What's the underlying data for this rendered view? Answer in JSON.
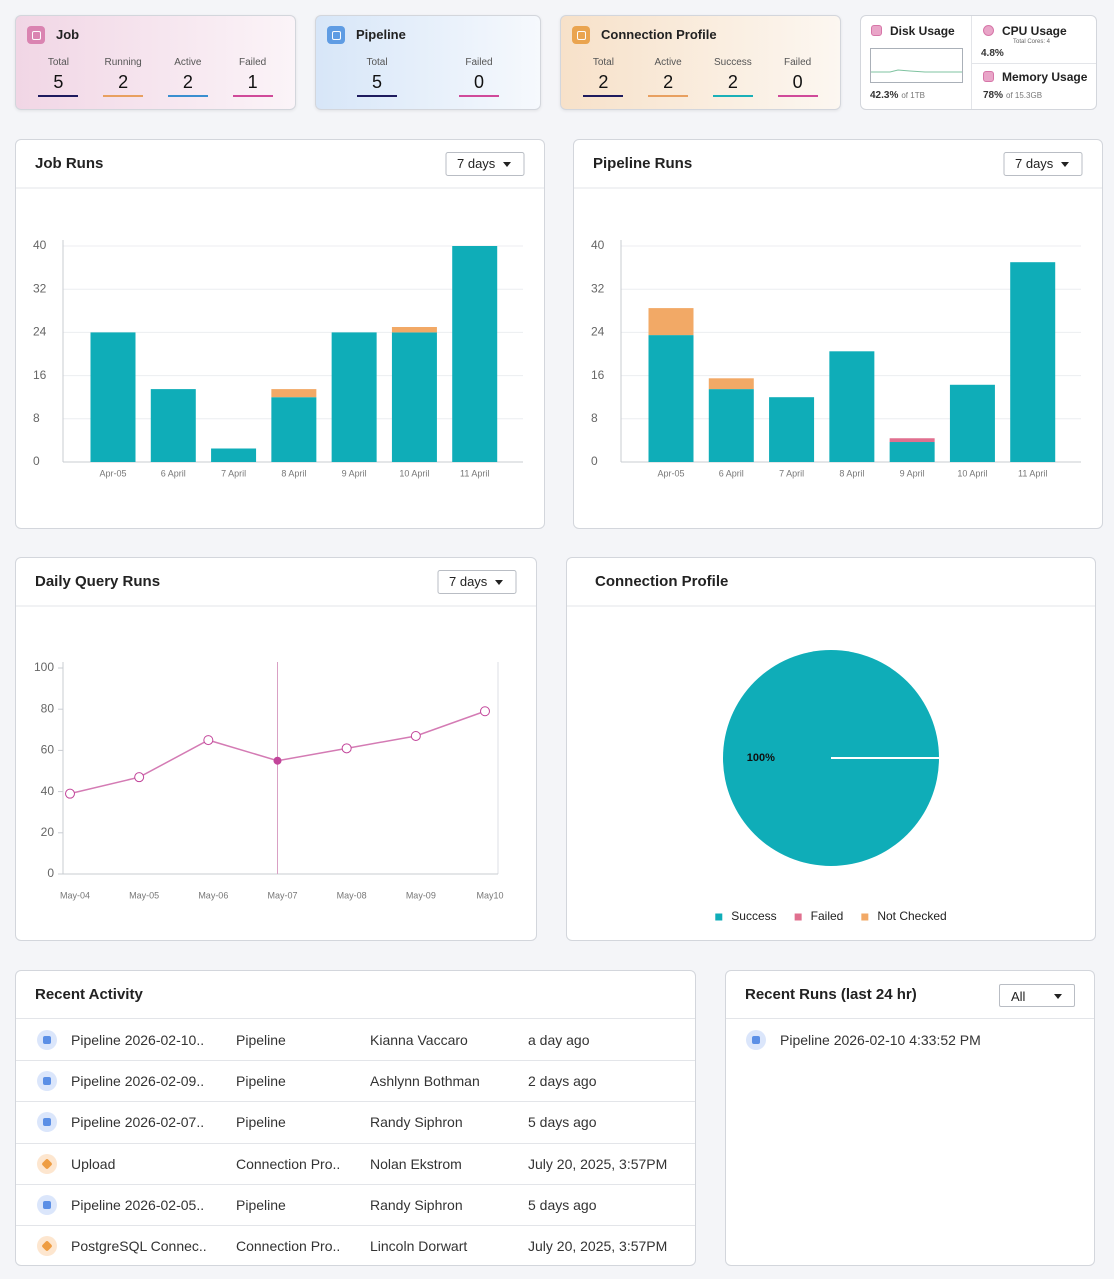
{
  "summary_cards": [
    {
      "title": "Job",
      "accent": "#d676a8",
      "stats": [
        {
          "label": "Total",
          "value": 5,
          "color": "#1e1b5e"
        },
        {
          "label": "Running",
          "value": 2,
          "color": "#e8a060"
        },
        {
          "label": "Active",
          "value": 2,
          "color": "#3a8fd0"
        },
        {
          "label": "Failed",
          "value": 1,
          "color": "#d04a9a"
        }
      ]
    },
    {
      "title": "Pipeline",
      "accent": "#4a8fe0",
      "stats": [
        {
          "label": "Total",
          "value": 5,
          "color": "#1e1b5e"
        },
        {
          "label": "Failed",
          "value": 0,
          "color": "#d04a9a"
        }
      ]
    },
    {
      "title": "Connection Profile",
      "accent": "#e89a3a",
      "stats": [
        {
          "label": "Total",
          "value": 2,
          "color": "#1e1b5e"
        },
        {
          "label": "Active",
          "value": 2,
          "color": "#e8a060"
        },
        {
          "label": "Success",
          "value": 2,
          "color": "#1ab0b8"
        },
        {
          "label": "Failed",
          "value": 0,
          "color": "#d04a9a"
        }
      ]
    }
  ],
  "system_usage": {
    "disk": {
      "title": "Disk Usage",
      "value": "42.3%",
      "detail": "of 1TB"
    },
    "cpu": {
      "title": "CPU Usage",
      "detail": "Total Cores: 4",
      "value": "4.8%"
    },
    "memory": {
      "title": "Memory Usage",
      "value": "78%",
      "detail": "of 15.3GB"
    }
  },
  "chart_data": [
    {
      "type": "bar",
      "stacked": true,
      "title": "Job Runs",
      "period": "7 days",
      "categories": [
        "Apr-05",
        "6 April",
        "7 April",
        "8 April",
        "9 April",
        "10 April",
        "11 April"
      ],
      "series": [
        {
          "color": "#0fadb8",
          "values": [
            24,
            13.5,
            2.5,
            12,
            24,
            24,
            40
          ]
        },
        {
          "color": "#f2a966",
          "values": [
            0,
            0,
            0,
            1.5,
            0,
            1,
            0
          ]
        }
      ],
      "ylim": [
        0,
        40
      ],
      "yticks": [
        0,
        8,
        16,
        24,
        32,
        40
      ],
      "grid": true
    },
    {
      "type": "bar",
      "stacked": true,
      "title": "Pipeline Runs",
      "period": "7 days",
      "categories": [
        "Apr-05",
        "6 April",
        "7 April",
        "8 April",
        "9 April",
        "10 April",
        "11 April"
      ],
      "series": [
        {
          "color": "#0fadb8",
          "values": [
            23.5,
            13.5,
            12,
            20.5,
            3.7,
            14.3,
            37
          ]
        },
        {
          "color": "#e0708f",
          "values": [
            0,
            0,
            0,
            0,
            0.7,
            0,
            0
          ]
        },
        {
          "color": "#f2a966",
          "values": [
            5,
            2,
            0,
            0,
            0,
            0,
            0
          ]
        }
      ],
      "ylim": [
        0,
        40
      ],
      "yticks": [
        0,
        8,
        16,
        24,
        32,
        40
      ],
      "grid": true
    },
    {
      "type": "line",
      "title": "Daily Query Runs",
      "period": "7 days",
      "categories": [
        "May-04",
        "May-05",
        "May-06",
        "May-07",
        "May-08",
        "May-09",
        "May10"
      ],
      "series": [
        {
          "color": "#d47bb4",
          "values": [
            39,
            47,
            65,
            55,
            61,
            67,
            79
          ]
        }
      ],
      "ylim": [
        0,
        100
      ],
      "yticks": [
        0,
        20,
        40,
        60,
        80,
        100
      ],
      "grid": false,
      "active_point": 3
    },
    {
      "type": "pie",
      "title": "Connection Profile",
      "categories": [
        "Success",
        "Failed",
        "Not Checked"
      ],
      "values": [
        100,
        0,
        0
      ],
      "value_labels": [
        "100%",
        null,
        null
      ],
      "colors": [
        "#0fadb8",
        "#e0708f",
        "#f2a966"
      ]
    }
  ],
  "recent_activity": {
    "title": "Recent Activity",
    "rows": [
      {
        "icon": "pipeline",
        "name": "Pipeline 2026-02-10..",
        "type": "Pipeline",
        "user": "Kianna Vaccaro",
        "time": "a day ago"
      },
      {
        "icon": "pipeline",
        "name": "Pipeline 2026-02-09..",
        "type": "Pipeline",
        "user": "Ashlynn Bothman",
        "time": "2 days ago"
      },
      {
        "icon": "pipeline",
        "name": "Pipeline 2026-02-07..",
        "type": "Pipeline",
        "user": "Randy Siphron",
        "time": "5 days ago"
      },
      {
        "icon": "connection",
        "name": "Upload",
        "type": "Connection Pro..",
        "user": "Nolan Ekstrom",
        "time": "July 20, 2025, 3:57PM"
      },
      {
        "icon": "pipeline",
        "name": "Pipeline 2026-02-05..",
        "type": "Pipeline",
        "user": "Randy Siphron",
        "time": "5 days ago"
      },
      {
        "icon": "connection",
        "name": "PostgreSQL Connec..",
        "type": "Connection Pro..",
        "user": "Lincoln Dorwart",
        "time": "July 20, 2025, 3:57PM"
      }
    ]
  },
  "recent_runs": {
    "title": "Recent Runs (last 24 hr)",
    "filter": "All",
    "items": [
      {
        "icon": "pipeline",
        "name": "Pipeline 2026-02-10 4:33:52 PM"
      }
    ]
  }
}
